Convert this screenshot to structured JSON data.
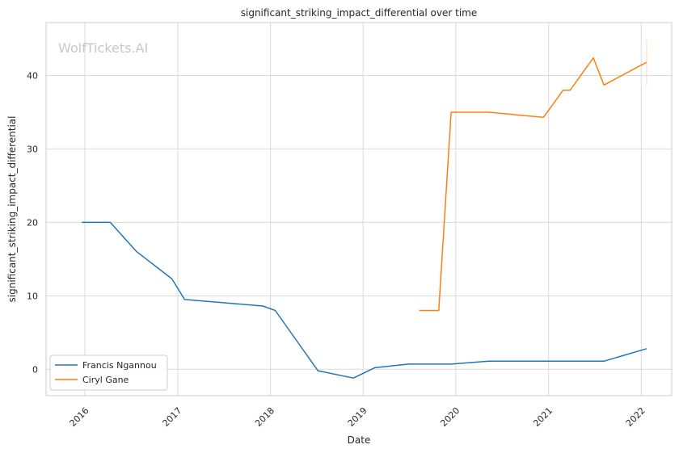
{
  "watermark": "WolfTickets.AI",
  "chart_data": {
    "type": "line",
    "title": "significant_striking_impact_differential over time",
    "xlabel": "Date",
    "ylabel": "significant_striking_impact_differential",
    "x_ticks": [
      "2016",
      "2017",
      "2018",
      "2019",
      "2020",
      "2021",
      "2022"
    ],
    "y_ticks": [
      0,
      10,
      20,
      30,
      40
    ],
    "xlim": [
      "2015-08-01",
      "2022-05-01"
    ],
    "ylim": [
      -3.6,
      47.2
    ],
    "grid": true,
    "legend_position": "lower-left",
    "series": [
      {
        "name": "Francis Ngannou",
        "color": "#1f77b4",
        "x": [
          "2015-12-20",
          "2016-04-10",
          "2016-07-23",
          "2016-12-09",
          "2017-01-28",
          "2017-12-02",
          "2018-01-20",
          "2018-07-07",
          "2018-11-24",
          "2019-02-16",
          "2019-06-29",
          "2019-12-15",
          "2020-05-10",
          "2020-12-10",
          "2021-03-27",
          "2021-08-07",
          "2022-01-22"
        ],
        "values": [
          20,
          20,
          16,
          12.3,
          9.5,
          8.6,
          8.0,
          -0.2,
          -1.2,
          0.2,
          0.7,
          0.7,
          1.1,
          1.1,
          1.1,
          1.1,
          2.8
        ]
      },
      {
        "name": "Ciryl Gane",
        "color": "#ff7f0e",
        "x": [
          "2019-08-10",
          "2019-10-26",
          "2019-12-14",
          "2020-05-10",
          "2020-12-12",
          "2021-02-27",
          "2021-03-27",
          "2021-06-26",
          "2021-08-07",
          "2022-01-22"
        ],
        "values": [
          8,
          8,
          35,
          35,
          34.3,
          38,
          38,
          42.4,
          38.7,
          41.8
        ],
        "error_bar": {
          "x": "2022-01-22",
          "low": 38.6,
          "high": 44.8
        }
      }
    ]
  }
}
